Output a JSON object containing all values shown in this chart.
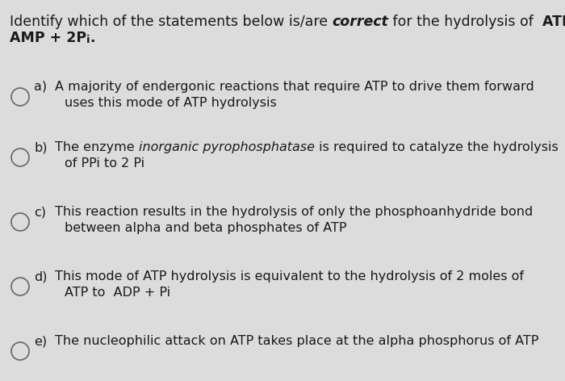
{
  "background_color": "#dcdcdc",
  "text_color": "#1a1a1a",
  "font_size_title": 12.5,
  "font_size_body": 11.5,
  "title_parts": [
    {
      "text": "Identify which of the statements below is/are ",
      "bold": false,
      "italic": false
    },
    {
      "text": "correct",
      "bold": true,
      "italic": true
    },
    {
      "text": " for the hydrolysis of  ",
      "bold": false,
      "italic": false
    },
    {
      "text": "ATP to",
      "bold": true,
      "italic": false
    }
  ],
  "title_line2_main": "AMP + 2P",
  "title_line2_sub": "i",
  "title_line2_end": ".",
  "options": [
    {
      "label": "a)",
      "line1": "A majority of endergonic reactions that require ATP to drive them forward",
      "line2": "uses this mode of ATP hydrolysis",
      "italic_phrase": null
    },
    {
      "label": "b)",
      "line1_before": "The enzyme ",
      "line1_italic": "inorganic pyrophosphatase",
      "line1_after": " is required to catalyze the hydrolysis",
      "line2": "of PPi to 2 Pi",
      "italic_phrase": "inorganic pyrophosphatase"
    },
    {
      "label": "c)",
      "line1": "This reaction results in the hydrolysis of only the phosphoanhydride bond",
      "line2": "between alpha and beta phosphates of ATP",
      "italic_phrase": null
    },
    {
      "label": "d)",
      "line1": "This mode of ATP hydrolysis is equivalent to the hydrolysis of 2 moles of",
      "line2": "ATP to  ADP + Pi",
      "italic_phrase": null
    },
    {
      "label": "e)",
      "line1": "The nucleophilic attack on ATP takes place at the alpha phosphorus of ATP",
      "line2": null,
      "italic_phrase": null
    }
  ]
}
